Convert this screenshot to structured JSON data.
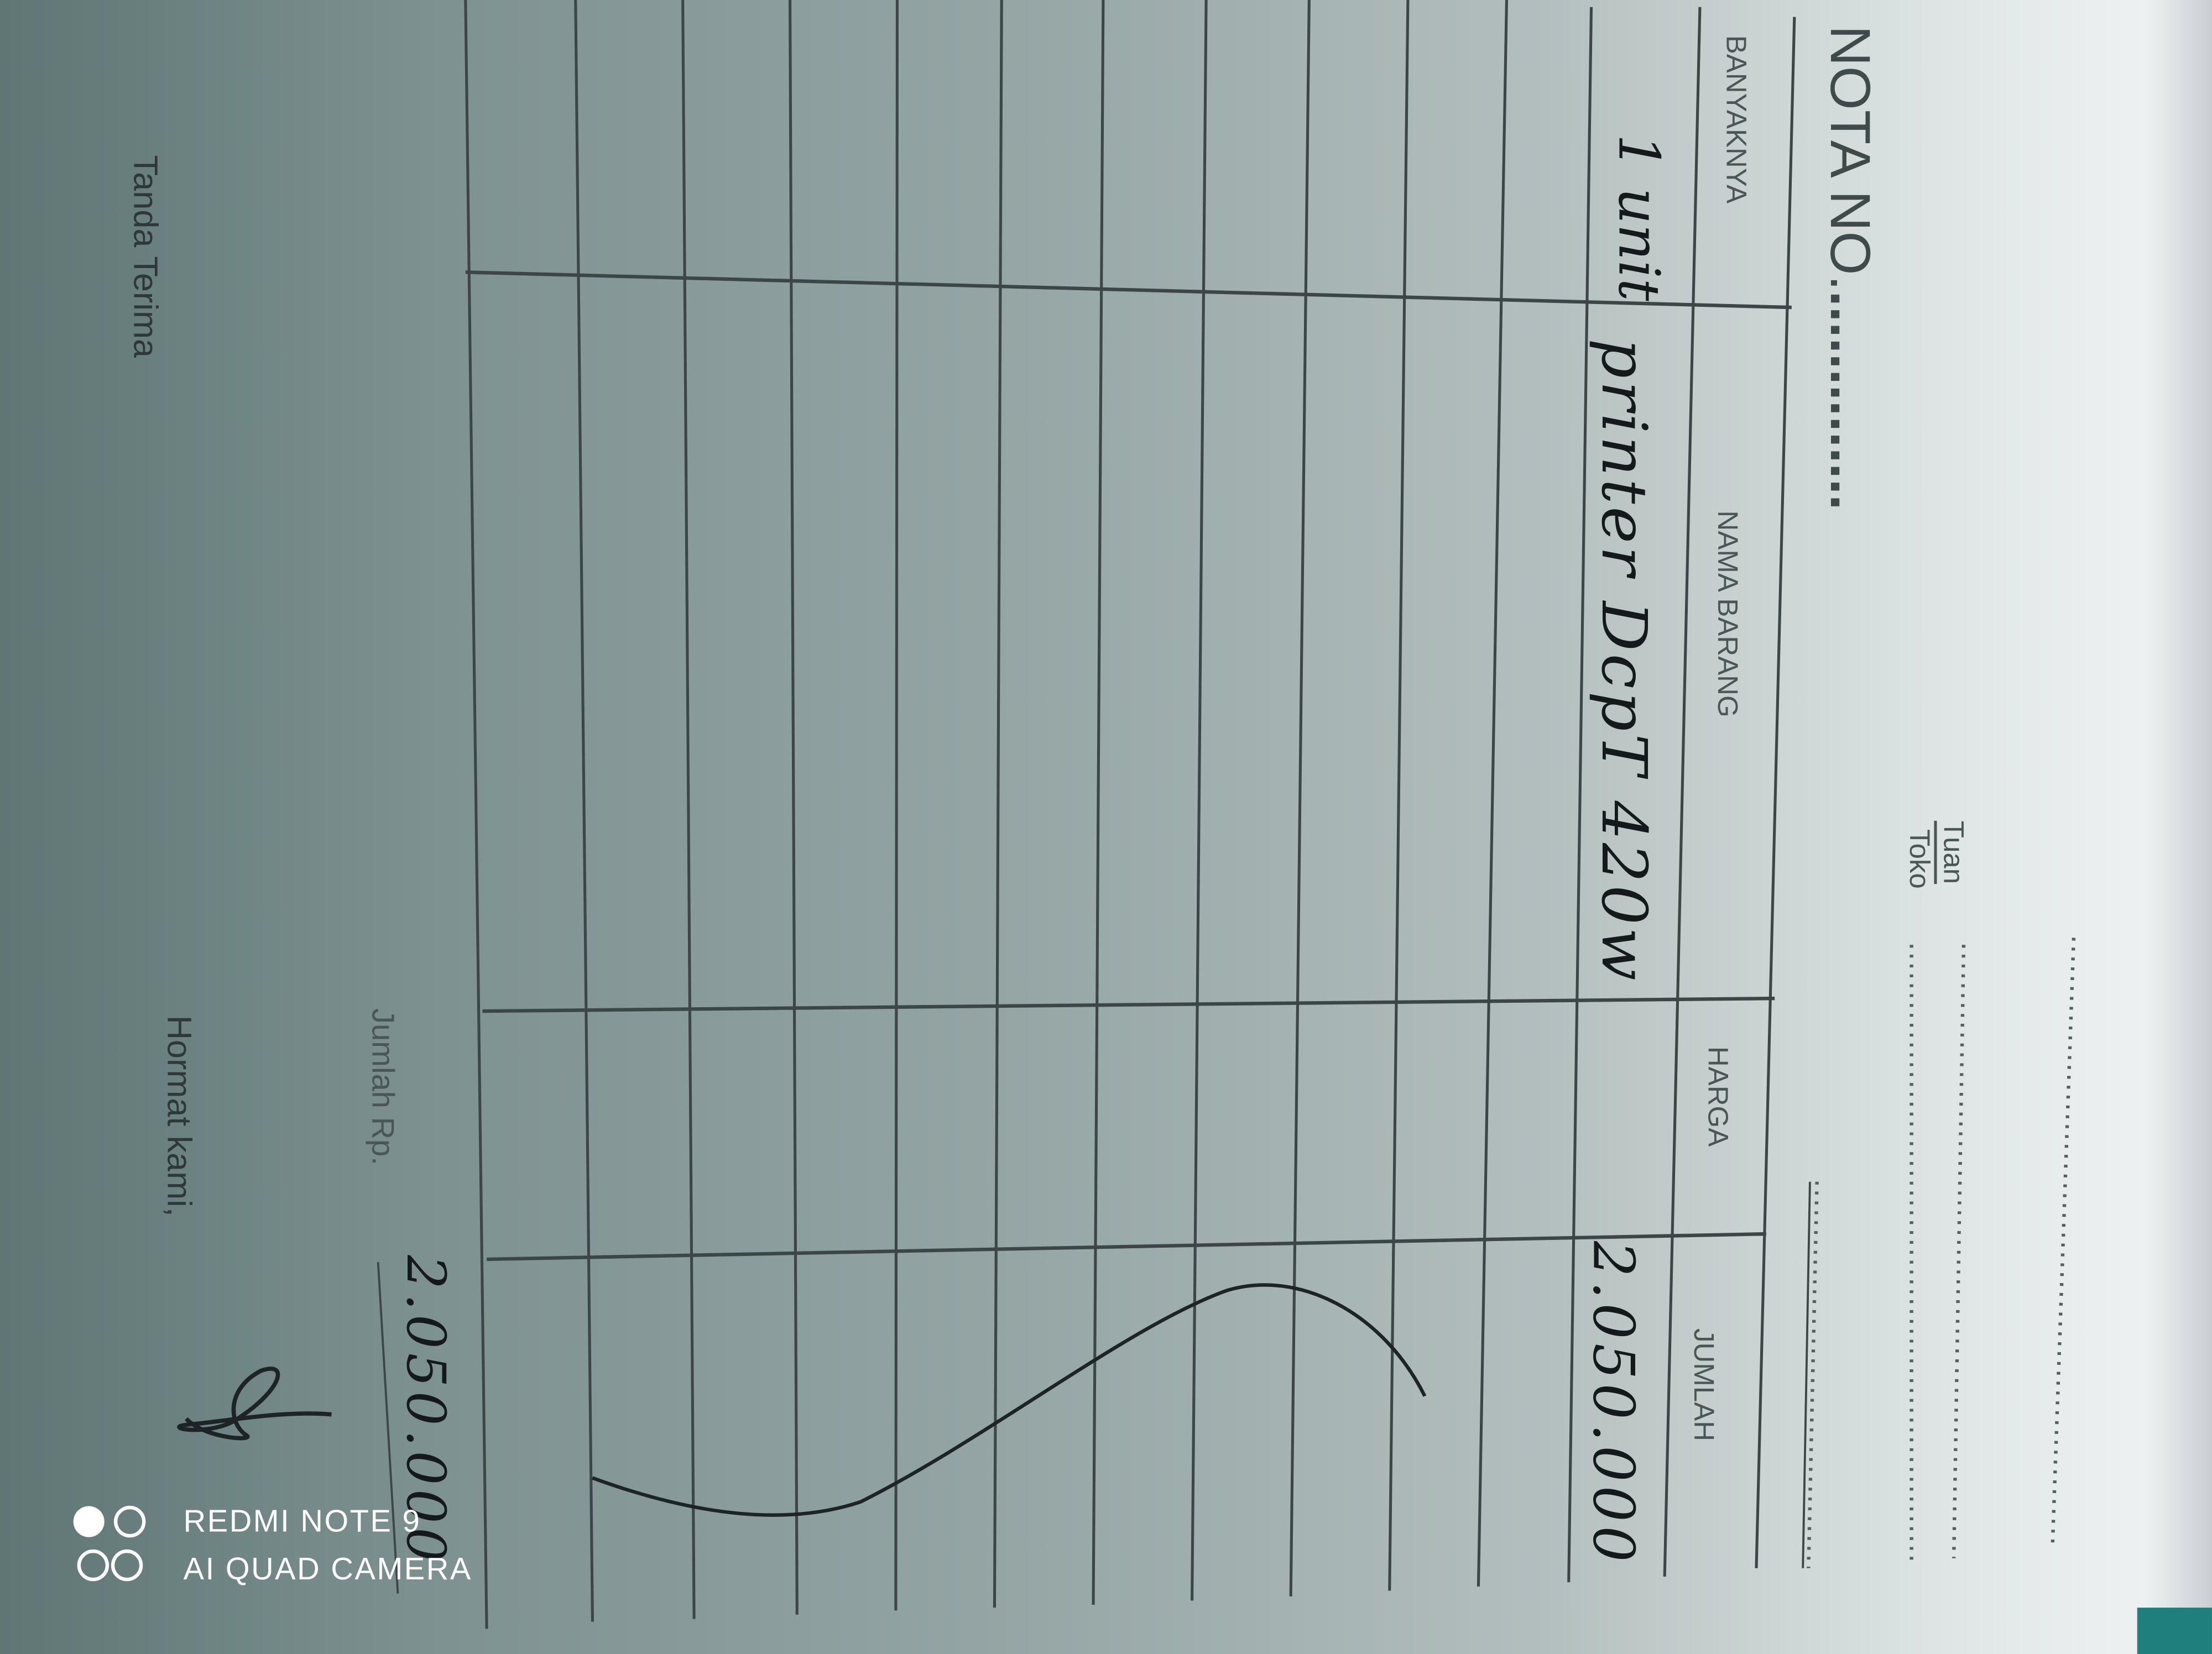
{
  "form": {
    "title": "NOTA NO.",
    "title_dots": "..............",
    "tuan_label": "Tuan",
    "toko_label": "Toko",
    "columns": [
      "BANYAKNYA",
      "NAMA BARANG",
      "HARGA",
      "JUMLAH"
    ],
    "rows": [
      {
        "banyaknya": "1 unit",
        "nama_barang": "printer DcpT 420w",
        "harga": "",
        "jumlah": "2.050.000"
      }
    ],
    "total_label": "Jumlah Rp.",
    "total_value": "2.050.000",
    "received_label": "Tanda Terima",
    "regards_label": "Hormat kami,"
  },
  "watermark": {
    "line1": "REDMI NOTE 9",
    "line2": "AI QUAD CAMERA",
    "icon": "quad-camera-icon"
  },
  "colors": {
    "ink": "#141a1c",
    "print": "#4a5556",
    "teal_edge": "#1f7f7d"
  }
}
